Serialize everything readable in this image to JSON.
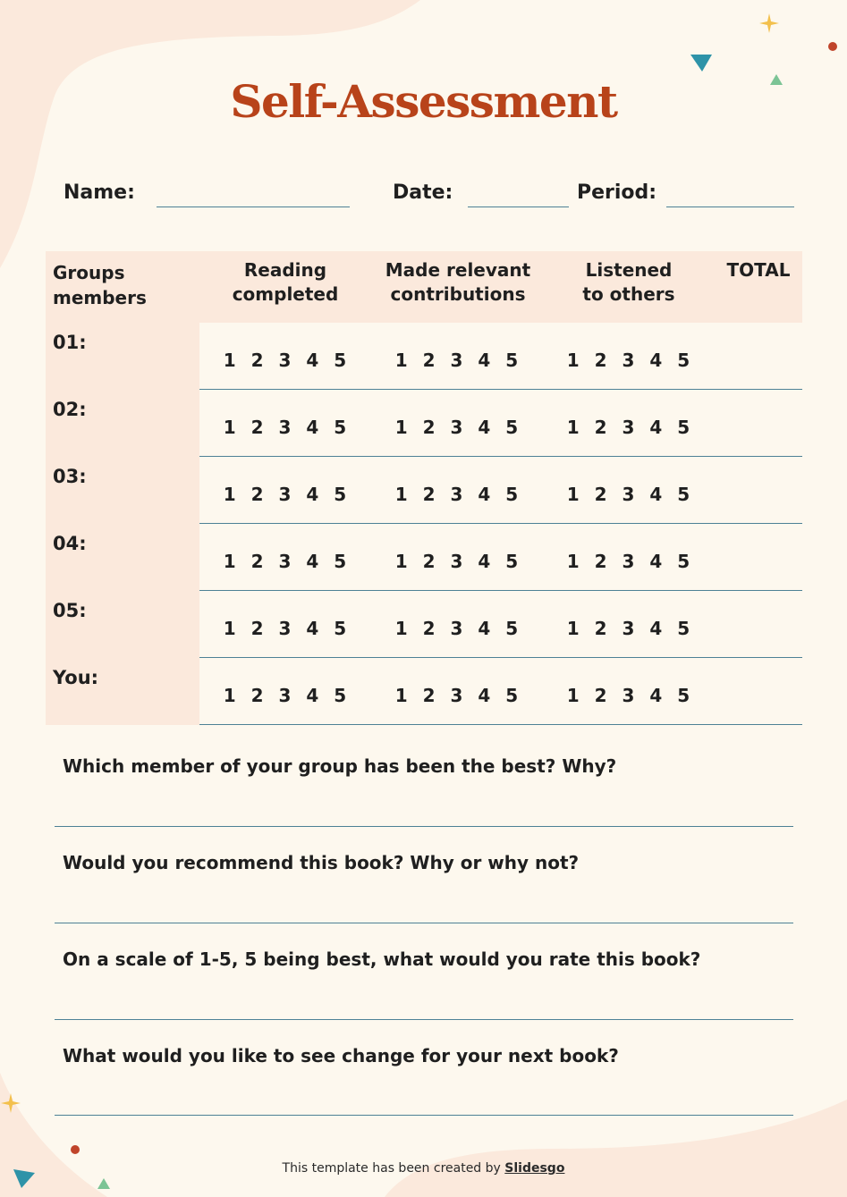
{
  "title": "Self-Assessment",
  "fields": {
    "name_label": "Name:",
    "date_label": "Date:",
    "period_label": "Period:"
  },
  "table": {
    "headers": [
      "Groups members",
      "Reading completed",
      "Made relevant contributions",
      "Listened to others",
      "TOTAL"
    ],
    "header_lines": {
      "groups": [
        "Groups",
        "members"
      ],
      "reading": [
        "Reading",
        "completed"
      ],
      "contributions": [
        "Made relevant",
        "contributions"
      ],
      "listened": [
        "Listened",
        "to others"
      ],
      "total": "TOTAL"
    },
    "rating_scale": "1 2 3 4 5",
    "rows": [
      {
        "label": "01:"
      },
      {
        "label": "02:"
      },
      {
        "label": "03:"
      },
      {
        "label": "04:"
      },
      {
        "label": "05:"
      },
      {
        "label": "You:"
      }
    ]
  },
  "questions": [
    "Which member of your group has been the best? Why?",
    "Would you recommend this book? Why or why not?",
    "On a scale of 1-5, 5 being best, what would you rate this book?",
    "What would you like to see change for your next book?"
  ],
  "footer": {
    "text": "This template has been created by ",
    "brand": "Slidesgo"
  },
  "colors": {
    "background": "#fdf8ee",
    "blob": "#fbe9dc",
    "title": "#b8431a",
    "lines": "#4d8195",
    "teal_triangle": "#2e93a8",
    "green_triangle": "#7cc495",
    "sparkle": "#f3c04c",
    "dot": "#c0442a"
  }
}
